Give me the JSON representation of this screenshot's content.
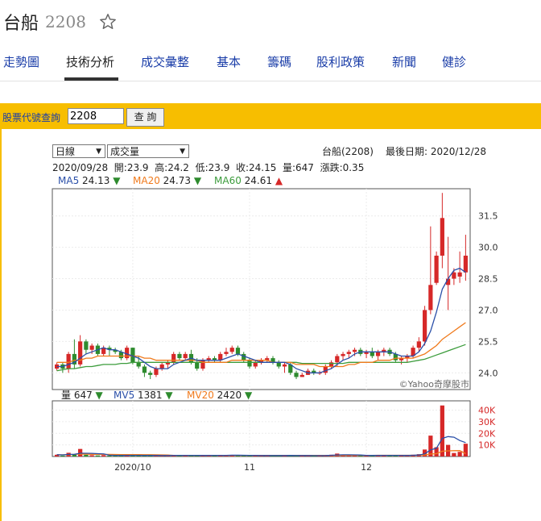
{
  "stock": {
    "name": "台船",
    "code": "2208"
  },
  "tabs": [
    "走勢圖",
    "技術分析",
    "成交彙整",
    "基本",
    "籌碼",
    "股利政策",
    "新聞",
    "健診"
  ],
  "active_tab_index": 1,
  "query": {
    "label": "股票代號查詢",
    "value": "2208",
    "button": "查 詢"
  },
  "selectors": {
    "period": "日線",
    "indicator": "成交量"
  },
  "info": {
    "stock_label": "台船(2208)",
    "last_date": "最後日期: 2020/12/28",
    "ohlc_line": "2020/09/28  開:23.9  高:24.2  低:23.9  收:24.15  量:647  漲跌:0.35"
  },
  "ma_legend": [
    {
      "label": "MA5",
      "value": "24.13",
      "dir": "▼",
      "color": "#2a4fa8",
      "arrow_color": "#2e8b2e"
    },
    {
      "label": "MA20",
      "value": "24.73",
      "dir": "▼",
      "color": "#f07a1c",
      "arrow_color": "#2e8b2e"
    },
    {
      "label": "MA60",
      "value": "24.61",
      "dir": "▲",
      "color": "#3c9c3c",
      "arrow_color": "#d62828"
    }
  ],
  "vol_legend": [
    {
      "label": "量",
      "value": "647",
      "dir": "▼",
      "color": "#222",
      "arrow_color": "#2e8b2e"
    },
    {
      "label": "MV5",
      "value": "1381",
      "dir": "▼",
      "color": "#2a4fa8",
      "arrow_color": "#2e8b2e"
    },
    {
      "label": "MV20",
      "value": "2420",
      "dir": "▼",
      "color": "#f07a1c",
      "arrow_color": "#2e8b2e"
    }
  ],
  "watermark": "©Yahoo奇摩股市",
  "colors": {
    "up": "#d62828",
    "down": "#2e8b2e",
    "ma5": "#2a4fa8",
    "ma20": "#f07a1c",
    "ma60": "#3c9c3c",
    "tab_link": "#1a3da8",
    "bar_bg": "#f7be00"
  },
  "chart_data": {
    "type": "candlestick",
    "price_axis": {
      "ticks": [
        24.0,
        25.5,
        27.0,
        28.5,
        30.0,
        31.5
      ],
      "ylim": [
        23.2,
        32.8
      ]
    },
    "volume_axis": {
      "ticks": [
        "10K",
        "20K",
        "30K",
        "40K"
      ],
      "tick_values": [
        10000,
        20000,
        30000,
        40000
      ],
      "ylim": [
        0,
        48000
      ]
    },
    "x_ticks": [
      "2020/10",
      "11",
      "12"
    ],
    "x_tick_index": [
      13,
      33,
      53
    ],
    "candles": [
      [
        24.2,
        24.5,
        24.1,
        24.4
      ],
      [
        24.4,
        24.5,
        24.0,
        24.2
      ],
      [
        24.2,
        25.0,
        24.0,
        24.9
      ],
      [
        24.9,
        25.6,
        24.2,
        24.4
      ],
      [
        24.4,
        25.8,
        24.3,
        25.5
      ],
      [
        25.5,
        25.6,
        24.9,
        25.1
      ],
      [
        25.1,
        25.4,
        24.9,
        25.3
      ],
      [
        25.3,
        25.4,
        24.8,
        24.9
      ],
      [
        24.9,
        25.3,
        24.8,
        25.2
      ],
      [
        25.2,
        25.3,
        24.8,
        25.1
      ],
      [
        25.1,
        25.2,
        24.9,
        25.0
      ],
      [
        25.0,
        25.1,
        24.6,
        24.7
      ],
      [
        24.7,
        25.3,
        24.6,
        25.2
      ],
      [
        25.2,
        25.2,
        24.4,
        24.5
      ],
      [
        24.5,
        24.8,
        24.2,
        24.3
      ],
      [
        24.3,
        24.4,
        23.8,
        24.0
      ],
      [
        24.0,
        24.1,
        23.7,
        23.9
      ],
      [
        23.9,
        24.3,
        23.8,
        24.2
      ],
      [
        24.2,
        24.5,
        24.1,
        24.4
      ],
      [
        24.4,
        24.6,
        24.2,
        24.5
      ],
      [
        24.5,
        25.0,
        24.4,
        24.9
      ],
      [
        24.9,
        25.0,
        24.6,
        24.7
      ],
      [
        24.7,
        25.0,
        24.6,
        24.9
      ],
      [
        24.9,
        25.1,
        24.4,
        24.5
      ],
      [
        24.5,
        24.7,
        24.1,
        24.2
      ],
      [
        24.2,
        24.7,
        24.1,
        24.6
      ],
      [
        24.6,
        24.8,
        24.5,
        24.7
      ],
      [
        24.7,
        24.8,
        24.5,
        24.6
      ],
      [
        24.6,
        25.0,
        24.5,
        24.9
      ],
      [
        24.9,
        25.2,
        24.8,
        25.0
      ],
      [
        25.0,
        25.3,
        24.9,
        25.2
      ],
      [
        25.2,
        25.3,
        24.8,
        24.9
      ],
      [
        24.9,
        25.0,
        24.5,
        24.6
      ],
      [
        24.6,
        24.7,
        24.2,
        24.3
      ],
      [
        24.3,
        24.6,
        24.2,
        24.5
      ],
      [
        24.5,
        24.7,
        24.4,
        24.6
      ],
      [
        24.6,
        24.8,
        24.5,
        24.7
      ],
      [
        24.7,
        24.8,
        24.4,
        24.5
      ],
      [
        24.5,
        24.6,
        24.2,
        24.3
      ],
      [
        24.3,
        24.5,
        24.0,
        24.4
      ],
      [
        24.4,
        24.5,
        23.9,
        24.0
      ],
      [
        24.0,
        24.1,
        23.7,
        23.8
      ],
      [
        23.8,
        24.0,
        23.8,
        23.9
      ],
      [
        23.9,
        24.2,
        23.9,
        24.1
      ],
      [
        24.1,
        24.2,
        23.9,
        24.0
      ],
      [
        24.0,
        24.1,
        23.9,
        24.0
      ],
      [
        24.0,
        24.4,
        23.9,
        24.3
      ],
      [
        24.3,
        24.6,
        24.2,
        24.5
      ],
      [
        24.5,
        24.9,
        24.3,
        24.8
      ],
      [
        24.8,
        25.0,
        24.6,
        24.9
      ],
      [
        24.9,
        25.1,
        24.7,
        25.0
      ],
      [
        25.0,
        25.2,
        24.8,
        25.1
      ],
      [
        25.1,
        25.2,
        24.8,
        24.9
      ],
      [
        24.9,
        25.1,
        24.7,
        25.0
      ],
      [
        25.0,
        25.2,
        24.7,
        24.8
      ],
      [
        24.8,
        25.1,
        24.6,
        25.0
      ],
      [
        25.0,
        25.2,
        24.8,
        25.1
      ],
      [
        25.1,
        25.2,
        24.8,
        24.9
      ],
      [
        24.9,
        25.0,
        24.5,
        24.6
      ],
      [
        24.6,
        24.8,
        24.4,
        24.7
      ],
      [
        24.7,
        24.9,
        24.5,
        24.8
      ],
      [
        24.8,
        25.3,
        24.7,
        25.2
      ],
      [
        25.2,
        25.7,
        25.0,
        25.5
      ],
      [
        25.5,
        27.2,
        25.3,
        27.0
      ],
      [
        27.0,
        31.0,
        26.8,
        28.2
      ],
      [
        28.3,
        29.8,
        28.2,
        29.6
      ],
      [
        29.6,
        32.6,
        29.0,
        31.4
      ],
      [
        28.2,
        30.5,
        27.0,
        28.5
      ],
      [
        28.5,
        29.0,
        28.2,
        28.8
      ],
      [
        28.6,
        29.8,
        28.3,
        28.8
      ],
      [
        28.8,
        30.6,
        28.4,
        29.6
      ]
    ],
    "ma5": [
      24.3,
      24.3,
      24.4,
      24.5,
      24.7,
      24.9,
      25.0,
      25.1,
      25.2,
      25.1,
      25.1,
      25.0,
      24.9,
      24.8,
      24.7,
      24.5,
      24.3,
      24.2,
      24.2,
      24.2,
      24.4,
      24.5,
      24.6,
      24.7,
      24.6,
      24.6,
      24.6,
      24.6,
      24.6,
      24.7,
      24.8,
      24.9,
      24.8,
      24.7,
      24.6,
      24.5,
      24.5,
      24.5,
      24.5,
      24.5,
      24.4,
      24.2,
      24.1,
      24.0,
      24.0,
      24.0,
      24.1,
      24.2,
      24.4,
      24.6,
      24.7,
      24.9,
      25.0,
      25.0,
      25.0,
      25.0,
      25.0,
      25.0,
      24.9,
      24.8,
      24.8,
      24.8,
      25.0,
      25.4,
      26.0,
      26.9,
      28.0,
      28.5,
      28.9,
      29.0,
      28.8
    ],
    "ma20": [
      24.5,
      24.5,
      24.5,
      24.6,
      24.6,
      24.7,
      24.7,
      24.8,
      24.8,
      24.8,
      24.8,
      24.8,
      24.8,
      24.8,
      24.8,
      24.7,
      24.7,
      24.6,
      24.6,
      24.6,
      24.6,
      24.6,
      24.6,
      24.6,
      24.6,
      24.5,
      24.5,
      24.5,
      24.5,
      24.5,
      24.6,
      24.6,
      24.6,
      24.6,
      24.6,
      24.6,
      24.6,
      24.5,
      24.5,
      24.5,
      24.5,
      24.4,
      24.4,
      24.4,
      24.4,
      24.3,
      24.3,
      24.3,
      24.3,
      24.3,
      24.4,
      24.4,
      24.5,
      24.5,
      24.5,
      24.6,
      24.6,
      24.6,
      24.7,
      24.7,
      24.7,
      24.7,
      24.8,
      24.9,
      25.1,
      25.3,
      25.6,
      25.8,
      26.0,
      26.2,
      26.4
    ],
    "ma60": [
      24.1,
      24.15,
      24.2,
      24.2,
      24.25,
      24.3,
      24.3,
      24.35,
      24.4,
      24.4,
      24.4,
      24.45,
      24.45,
      24.5,
      24.5,
      24.5,
      24.5,
      24.5,
      24.5,
      24.5,
      24.5,
      24.5,
      24.5,
      24.5,
      24.5,
      24.5,
      24.5,
      24.5,
      24.5,
      24.5,
      24.5,
      24.5,
      24.5,
      24.5,
      24.5,
      24.5,
      24.5,
      24.5,
      24.5,
      24.5,
      24.5,
      24.5,
      24.45,
      24.45,
      24.45,
      24.45,
      24.45,
      24.45,
      24.45,
      24.45,
      24.5,
      24.5,
      24.5,
      24.5,
      24.5,
      24.5,
      24.5,
      24.5,
      24.5,
      24.5,
      24.5,
      24.55,
      24.6,
      24.65,
      24.75,
      24.85,
      24.95,
      25.05,
      25.15,
      25.25,
      25.35
    ],
    "volume": [
      1500,
      800,
      3200,
      2000,
      6500,
      1500,
      1100,
      900,
      1200,
      800,
      700,
      900,
      1000,
      1200,
      900,
      800,
      700,
      900,
      1000,
      800,
      1300,
      900,
      800,
      1100,
      900,
      800,
      1200,
      1000,
      900,
      1100,
      1300,
      900,
      800,
      900,
      700,
      800,
      1000,
      800,
      900,
      1100,
      800,
      700,
      600,
      900,
      700,
      800,
      1200,
      1500,
      2500,
      1200,
      1000,
      900,
      800,
      1000,
      900,
      1200,
      1000,
      900,
      800,
      900,
      1000,
      1500,
      2000,
      6000,
      18000,
      8000,
      44000,
      10000,
      3000,
      4000,
      11000
    ],
    "mv5": [
      1500,
      1400,
      1800,
      1900,
      2800,
      2800,
      2700,
      2400,
      2200,
      1100,
      950,
      900,
      920,
      960,
      940,
      920,
      900,
      900,
      860,
      840,
      940,
      980,
      960,
      980,
      1000,
      900,
      960,
      1000,
      980,
      1000,
      1100,
      1080,
      1040,
      1000,
      960,
      860,
      840,
      840,
      840,
      860,
      880,
      860,
      820,
      820,
      760,
      740,
      840,
      1020,
      1340,
      1440,
      1480,
      1420,
      1280,
      960,
      920,
      960,
      980,
      960,
      960,
      960,
      920,
      1020,
      1240,
      2280,
      5700,
      7100,
      15600,
      17200,
      16600,
      13800,
      12000
    ],
    "mv20": [
      1500,
      1450,
      1700,
      1800,
      2100,
      2000,
      1900,
      1800,
      1800,
      1800,
      1750,
      1700,
      1700,
      1650,
      1600,
      1550,
      1500,
      1450,
      1400,
      1300,
      1000,
      960,
      940,
      950,
      950,
      940,
      950,
      960,
      960,
      970,
      990,
      990,
      980,
      980,
      970,
      960,
      950,
      940,
      940,
      940,
      930,
      920,
      900,
      890,
      880,
      870,
      880,
      900,
      950,
      970,
      980,
      990,
      990,
      1000,
      1000,
      1020,
      1040,
      1040,
      1030,
      1030,
      1040,
      1060,
      1100,
      1300,
      2100,
      2400,
      4500,
      4900,
      5000,
      5100,
      2420
    ]
  }
}
